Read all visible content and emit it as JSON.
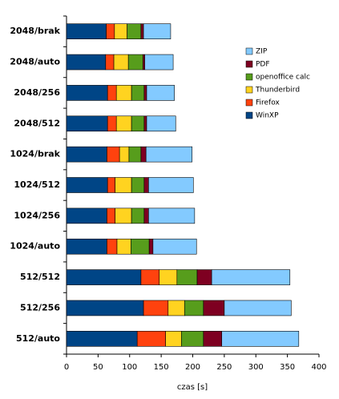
{
  "chart_data": {
    "type": "stacked-barh",
    "categories": [
      "2048/brak",
      "2048/auto",
      "2048/256",
      "2048/512",
      "1024/brak",
      "1024/512",
      "1024/256",
      "1024/auto",
      "512/512",
      "512/256",
      "512/auto"
    ],
    "series": [
      {
        "name": "WinXP",
        "color": "#004586",
        "values": [
          63,
          62,
          65,
          65,
          64,
          65,
          64,
          64,
          118,
          122,
          112
        ]
      },
      {
        "name": "Firefox",
        "color": "#ff420e",
        "values": [
          13,
          13,
          14,
          14,
          20,
          12,
          13,
          16,
          29,
          39,
          45
        ]
      },
      {
        "name": "Thunderbird",
        "color": "#ffd320",
        "values": [
          20,
          23,
          24,
          24,
          15,
          26,
          26,
          22,
          28,
          26,
          25
        ]
      },
      {
        "name": "openoffice calc",
        "color": "#579d1c",
        "values": [
          22,
          23,
          20,
          20,
          19,
          20,
          20,
          29,
          32,
          30,
          35
        ]
      },
      {
        "name": "PDF",
        "color": "#7e0021",
        "values": [
          4,
          3,
          4,
          4,
          8,
          7,
          7,
          6,
          23,
          33,
          29
        ]
      },
      {
        "name": "ZIP",
        "color": "#83caff",
        "values": [
          43,
          45,
          44,
          46,
          73,
          71,
          73,
          69,
          124,
          106,
          122
        ]
      }
    ],
    "xlabel": "czas [s]",
    "xlim": [
      0,
      400
    ],
    "xticks": [
      0,
      50,
      100,
      150,
      200,
      250,
      300,
      350,
      400
    ],
    "legend": "right"
  }
}
